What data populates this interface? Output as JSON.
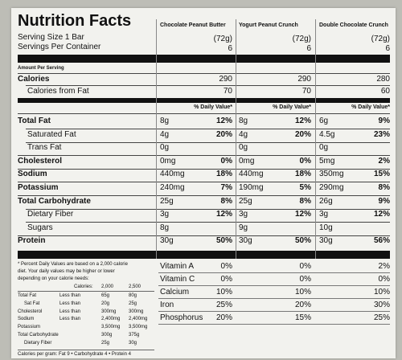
{
  "header": {
    "title": "Nutrition Facts",
    "serving_size": "Serving Size 1 Bar",
    "servings_per_container": "Servings Per Container",
    "amount_per_serving": "Amount Per Serving",
    "daily_value_header": "% Daily Value*"
  },
  "products": [
    {
      "name": "Chocolate Peanut Butter",
      "serving_size": "(72g)",
      "servings": "6"
    },
    {
      "name": "Yogurt Peanut Crunch",
      "serving_size": "(72g)",
      "servings": "6"
    },
    {
      "name": "Double Chocolate Crunch",
      "serving_size": "(72g)",
      "servings": "6"
    }
  ],
  "calories": {
    "label": "Calories",
    "from_fat_label": "Calories from Fat",
    "values": [
      "290",
      "290",
      "280"
    ],
    "from_fat": [
      "70",
      "70",
      "60"
    ]
  },
  "nutrients": [
    {
      "label": "Total Fat",
      "bold": true,
      "indent": false,
      "amounts": [
        "8g",
        "8g",
        "6g"
      ],
      "dv": [
        "12%",
        "12%",
        "9%"
      ]
    },
    {
      "label": "Saturated Fat",
      "bold": false,
      "indent": true,
      "amounts": [
        "4g",
        "4g",
        "4.5g"
      ],
      "dv": [
        "20%",
        "20%",
        "23%"
      ]
    },
    {
      "label": "Trans Fat",
      "bold": false,
      "indent": true,
      "amounts": [
        "0g",
        "0g",
        "0g"
      ],
      "dv": [
        "",
        "",
        ""
      ]
    },
    {
      "label": "Cholesterol",
      "bold": true,
      "indent": false,
      "amounts": [
        "0mg",
        "0mg",
        "5mg"
      ],
      "dv": [
        "0%",
        "0%",
        "2%"
      ]
    },
    {
      "label": "Sodium",
      "bold": true,
      "indent": false,
      "amounts": [
        "440mg",
        "440mg",
        "350mg"
      ],
      "dv": [
        "18%",
        "18%",
        "15%"
      ]
    },
    {
      "label": "Potassium",
      "bold": true,
      "indent": false,
      "amounts": [
        "240mg",
        "190mg",
        "290mg"
      ],
      "dv": [
        "7%",
        "5%",
        "8%"
      ]
    },
    {
      "label": "Total Carbohydrate",
      "bold": true,
      "indent": false,
      "amounts": [
        "25g",
        "25g",
        "26g"
      ],
      "dv": [
        "8%",
        "8%",
        "9%"
      ]
    },
    {
      "label": "Dietary Fiber",
      "bold": false,
      "indent": true,
      "amounts": [
        "3g",
        "3g",
        "3g"
      ],
      "dv": [
        "12%",
        "12%",
        "12%"
      ]
    },
    {
      "label": "Sugars",
      "bold": false,
      "indent": true,
      "amounts": [
        "8g",
        "9g",
        "10g"
      ],
      "dv": [
        "",
        "",
        ""
      ]
    },
    {
      "label": "Protein",
      "bold": true,
      "indent": false,
      "amounts": [
        "30g",
        "30g",
        "30g"
      ],
      "dv": [
        "50%",
        "50%",
        "56%"
      ]
    }
  ],
  "vitamins": [
    {
      "label": "Vitamin A",
      "values": [
        "0%",
        "0%",
        "2%"
      ]
    },
    {
      "label": "Vitamin C",
      "values": [
        "0%",
        "0%",
        "0%"
      ]
    },
    {
      "label": "Calcium",
      "values": [
        "10%",
        "10%",
        "10%"
      ]
    },
    {
      "label": "Iron",
      "values": [
        "25%",
        "20%",
        "30%"
      ]
    },
    {
      "label": "Phosphorus",
      "values": [
        "20%",
        "15%",
        "25%"
      ]
    }
  ],
  "footnote": {
    "lines": [
      "* Percent Daily Values are based on a 2,000 calorie",
      "diet. Your daily values may be higher or lower",
      "depending on your calorie needs:"
    ],
    "calories_label": "Calories:",
    "columns": [
      "2,000",
      "2,500"
    ],
    "rows": [
      {
        "label": "Total Fat",
        "qual": "Less than",
        "v1": "65g",
        "v2": "80g"
      },
      {
        "label": "Sat Fat",
        "qual": "Less than",
        "v1": "20g",
        "v2": "25g"
      },
      {
        "label": "Cholesterol",
        "qual": "Less than",
        "v1": "300mg",
        "v2": "300mg"
      },
      {
        "label": "Sodium",
        "qual": "Less than",
        "v1": "2,400mg",
        "v2": "2,400mg"
      },
      {
        "label": "Potassium",
        "qual": "",
        "v1": "3,500mg",
        "v2": "3,500mg"
      },
      {
        "label": "Total Carbohydrate",
        "qual": "",
        "v1": "300g",
        "v2": "375g"
      },
      {
        "label": "Dietary Fiber",
        "qual": "",
        "v1": "25g",
        "v2": "30g"
      }
    ],
    "calories_per_gram": "Calories per gram:  Fat 9  •  Carbohydrate 4  •  Protein 4"
  }
}
